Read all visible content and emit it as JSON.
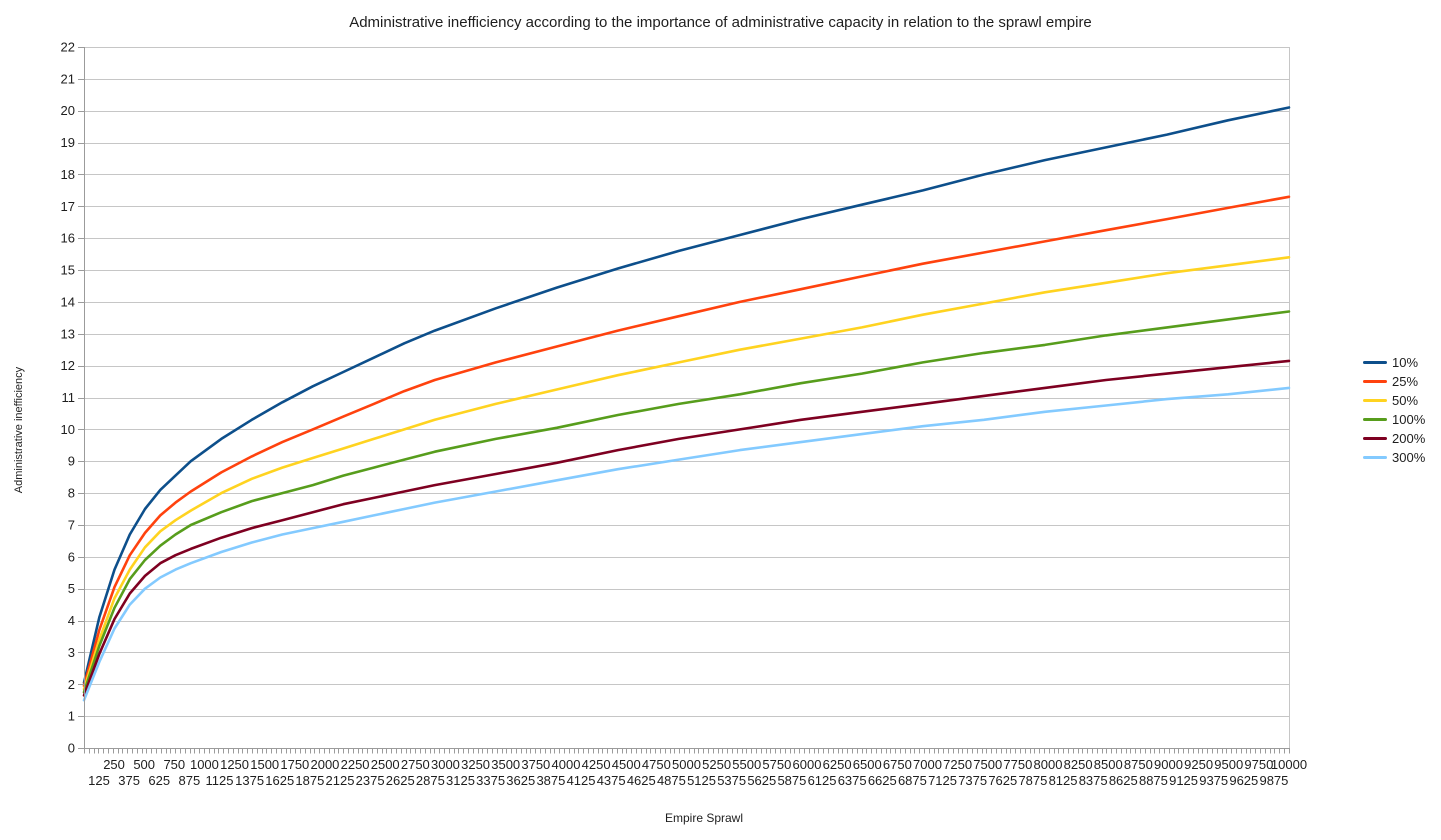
{
  "title": "Administrative inefficiency according to the importance of administrative capacity in relation to the sprawl empire",
  "x_axis": {
    "title": "Empire Sprawl",
    "tick_labels_row1": [
      250,
      500,
      750,
      1000,
      1250,
      1500,
      1750,
      2000,
      2250,
      2500,
      2750,
      3000,
      3250,
      3500,
      3750,
      4000,
      4250,
      4500,
      4750,
      5000,
      5250,
      5500,
      5750,
      6000,
      6250,
      6500,
      6750,
      7000,
      7250,
      7500,
      7750,
      8000,
      8250,
      8500,
      8750,
      9000,
      9250,
      9500,
      9750,
      10000
    ],
    "tick_labels_row2": [
      125,
      375,
      625,
      875,
      1125,
      1375,
      1625,
      1875,
      2125,
      2375,
      2625,
      2875,
      3125,
      3375,
      3625,
      3875,
      4125,
      4375,
      4625,
      4875,
      5125,
      5375,
      5625,
      5875,
      6125,
      6375,
      6625,
      6875,
      7125,
      7375,
      7625,
      7875,
      8125,
      8375,
      8625,
      8875,
      9125,
      9375,
      9625,
      9875
    ],
    "min": 125,
    "max": 10000,
    "step": 125
  },
  "y_axis": {
    "title": "Administrative inefficiency",
    "ticks": [
      0,
      1,
      2,
      3,
      4,
      5,
      6,
      7,
      8,
      9,
      10,
      11,
      12,
      13,
      14,
      15,
      16,
      17,
      18,
      19,
      20,
      21,
      22
    ],
    "min": 0,
    "max": 22
  },
  "legend": {
    "items": [
      {
        "label": "10%",
        "color": "#0d4f8b"
      },
      {
        "label": "25%",
        "color": "#ff420e"
      },
      {
        "label": "50%",
        "color": "#ffd320"
      },
      {
        "label": "100%",
        "color": "#579d1c"
      },
      {
        "label": "200%",
        "color": "#7e0021"
      },
      {
        "label": "300%",
        "color": "#83caff"
      }
    ]
  },
  "style": {
    "grid_color": "#c6c6c6",
    "axis_color": "#9b9b9b",
    "text_color": "#1e1e1e",
    "background": "#ffffff"
  },
  "chart_data": {
    "type": "line",
    "title": "Administrative inefficiency according to the importance of administrative capacity in relation to the sprawl empire",
    "xlabel": "Empire Sprawl",
    "ylabel": "Administrative inefficiency",
    "xlim": [
      125,
      10000
    ],
    "ylim": [
      0,
      22
    ],
    "grid": "horizontal gridlines at every 1 unit",
    "legend_position": "right",
    "x": [
      125,
      250,
      375,
      500,
      625,
      750,
      875,
      1000,
      1250,
      1500,
      1750,
      2000,
      2250,
      2500,
      2750,
      3000,
      3500,
      4000,
      4500,
      5000,
      5500,
      6000,
      6500,
      7000,
      7500,
      8000,
      8500,
      9000,
      9500,
      10000
    ],
    "series": [
      {
        "name": "10%",
        "color": "#0d4f8b",
        "values": [
          2.05,
          4.1,
          5.6,
          6.7,
          7.5,
          8.1,
          8.55,
          9.0,
          9.7,
          10.3,
          10.85,
          11.35,
          11.8,
          12.25,
          12.7,
          13.1,
          13.8,
          14.45,
          15.05,
          15.6,
          16.1,
          16.6,
          17.05,
          17.5,
          18.0,
          18.45,
          18.85,
          19.25,
          19.7,
          20.1
        ]
      },
      {
        "name": "25%",
        "color": "#ff420e",
        "values": [
          1.95,
          3.7,
          5.05,
          6.05,
          6.75,
          7.3,
          7.7,
          8.05,
          8.65,
          9.15,
          9.6,
          10.0,
          10.4,
          10.8,
          11.2,
          11.55,
          12.1,
          12.6,
          13.1,
          13.55,
          14.0,
          14.4,
          14.8,
          15.2,
          15.55,
          15.9,
          16.25,
          16.6,
          16.95,
          17.3
        ]
      },
      {
        "name": "50%",
        "color": "#ffd320",
        "values": [
          1.85,
          3.4,
          4.7,
          5.6,
          6.3,
          6.8,
          7.15,
          7.45,
          8.0,
          8.45,
          8.8,
          9.1,
          9.4,
          9.7,
          10.0,
          10.3,
          10.8,
          11.25,
          11.7,
          12.1,
          12.5,
          12.85,
          13.2,
          13.6,
          13.95,
          14.3,
          14.6,
          14.9,
          15.15,
          15.4
        ]
      },
      {
        "name": "100%",
        "color": "#579d1c",
        "values": [
          1.75,
          3.2,
          4.4,
          5.3,
          5.9,
          6.35,
          6.7,
          7.0,
          7.4,
          7.75,
          8.0,
          8.25,
          8.55,
          8.8,
          9.05,
          9.3,
          9.7,
          10.05,
          10.45,
          10.8,
          11.1,
          11.45,
          11.75,
          12.1,
          12.4,
          12.65,
          12.95,
          13.2,
          13.45,
          13.7
        ]
      },
      {
        "name": "200%",
        "color": "#7e0021",
        "values": [
          1.65,
          2.95,
          4.05,
          4.85,
          5.4,
          5.8,
          6.05,
          6.25,
          6.6,
          6.9,
          7.15,
          7.4,
          7.65,
          7.85,
          8.05,
          8.25,
          8.6,
          8.95,
          9.35,
          9.7,
          10.0,
          10.3,
          10.55,
          10.8,
          11.05,
          11.3,
          11.55,
          11.75,
          11.95,
          12.15
        ]
      },
      {
        "name": "300%",
        "color": "#83caff",
        "values": [
          1.5,
          2.7,
          3.75,
          4.5,
          5.0,
          5.35,
          5.6,
          5.8,
          6.15,
          6.45,
          6.7,
          6.9,
          7.1,
          7.3,
          7.5,
          7.7,
          8.05,
          8.4,
          8.75,
          9.05,
          9.35,
          9.6,
          9.85,
          10.1,
          10.3,
          10.55,
          10.75,
          10.95,
          11.1,
          11.3
        ]
      }
    ]
  }
}
